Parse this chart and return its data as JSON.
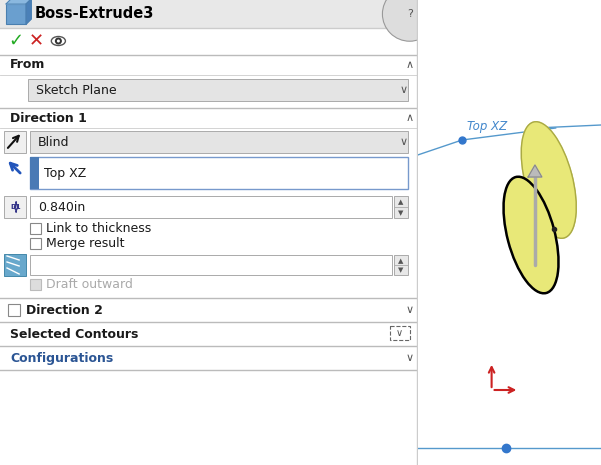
{
  "title": "Boss-Extrude3",
  "white": "#ffffff",
  "light_gray": "#f0f0f0",
  "med_gray": "#e0e0e0",
  "dark_text": "#1a1a1a",
  "bold_text": "#000000",
  "blue_section_text": "#2b5594",
  "divider_color": "#b0b0b0",
  "header_bg": "#e8e8e8",
  "dropdown_bg": "#e4e4e4",
  "blue_bar_color": "#4a7ab5",
  "check_green": "#22aa22",
  "check_red": "#cc2222",
  "blue_arrow": "#2255bb",
  "icon_blue": "#4a86b8",
  "from_dropdown": "Sketch Plane",
  "direction1_type": "Blind",
  "direction1_plane": "Top XZ",
  "direction1_depth": "0.840in",
  "cb_link": "Link to thickness",
  "cb_merge": "Merge result",
  "draft_label": "Draft outward",
  "blue_line": "#5599cc",
  "yellow_fill": "#e8e878",
  "yellow_dark": "#c8c860",
  "yellow_side": "#d0d068"
}
